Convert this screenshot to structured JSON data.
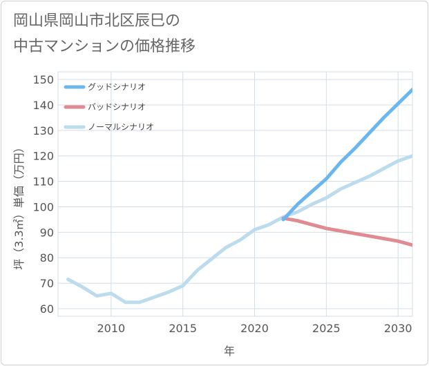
{
  "title_lines": [
    "岡山県岡山市北区辰巳の",
    "中古マンションの価格推移"
  ],
  "chart_data": {
    "type": "line",
    "title": "岡山県岡山市北区辰巳の中古マンションの価格推移",
    "xlabel": "年",
    "ylabel": "坪（3.3㎡）単価（万円）",
    "xlim": [
      2006.3,
      2031
    ],
    "ylim": [
      57,
      153
    ],
    "xticks": [
      2010,
      2015,
      2020,
      2025,
      2030
    ],
    "yticks": [
      60,
      70,
      80,
      90,
      100,
      110,
      120,
      130,
      140,
      150
    ],
    "grid": true,
    "legend_position": "top-left",
    "series": [
      {
        "name": "グッドシナリオ",
        "color": "#6cb6ee",
        "x": [
          2022,
          2023,
          2024,
          2025,
          2026,
          2027,
          2028,
          2029,
          2030,
          2031
        ],
        "y": [
          95,
          101,
          106,
          111,
          117.5,
          123,
          129,
          135,
          140.5,
          146
        ]
      },
      {
        "name": "バッドシナリオ",
        "color": "#e08a92",
        "x": [
          2022,
          2023,
          2024,
          2025,
          2026,
          2027,
          2028,
          2029,
          2030,
          2031
        ],
        "y": [
          95.5,
          94.5,
          93,
          91.5,
          90.5,
          89.5,
          88.5,
          87.5,
          86.5,
          85
        ]
      },
      {
        "name": "ノーマルシナリオ",
        "color": "#bcdcee",
        "x": [
          2007,
          2008,
          2009,
          2010,
          2011,
          2012,
          2013,
          2014,
          2015,
          2016,
          2017,
          2018,
          2019,
          2020,
          2021,
          2022,
          2023,
          2024,
          2025,
          2026,
          2027,
          2028,
          2029,
          2030,
          2031
        ],
        "y": [
          71.5,
          68.5,
          65,
          66,
          62.5,
          62.5,
          64.5,
          66.5,
          69,
          75,
          79.5,
          84,
          87,
          91,
          93,
          96,
          98,
          101,
          103.5,
          107,
          109.5,
          112,
          115,
          118,
          120
        ]
      }
    ]
  }
}
